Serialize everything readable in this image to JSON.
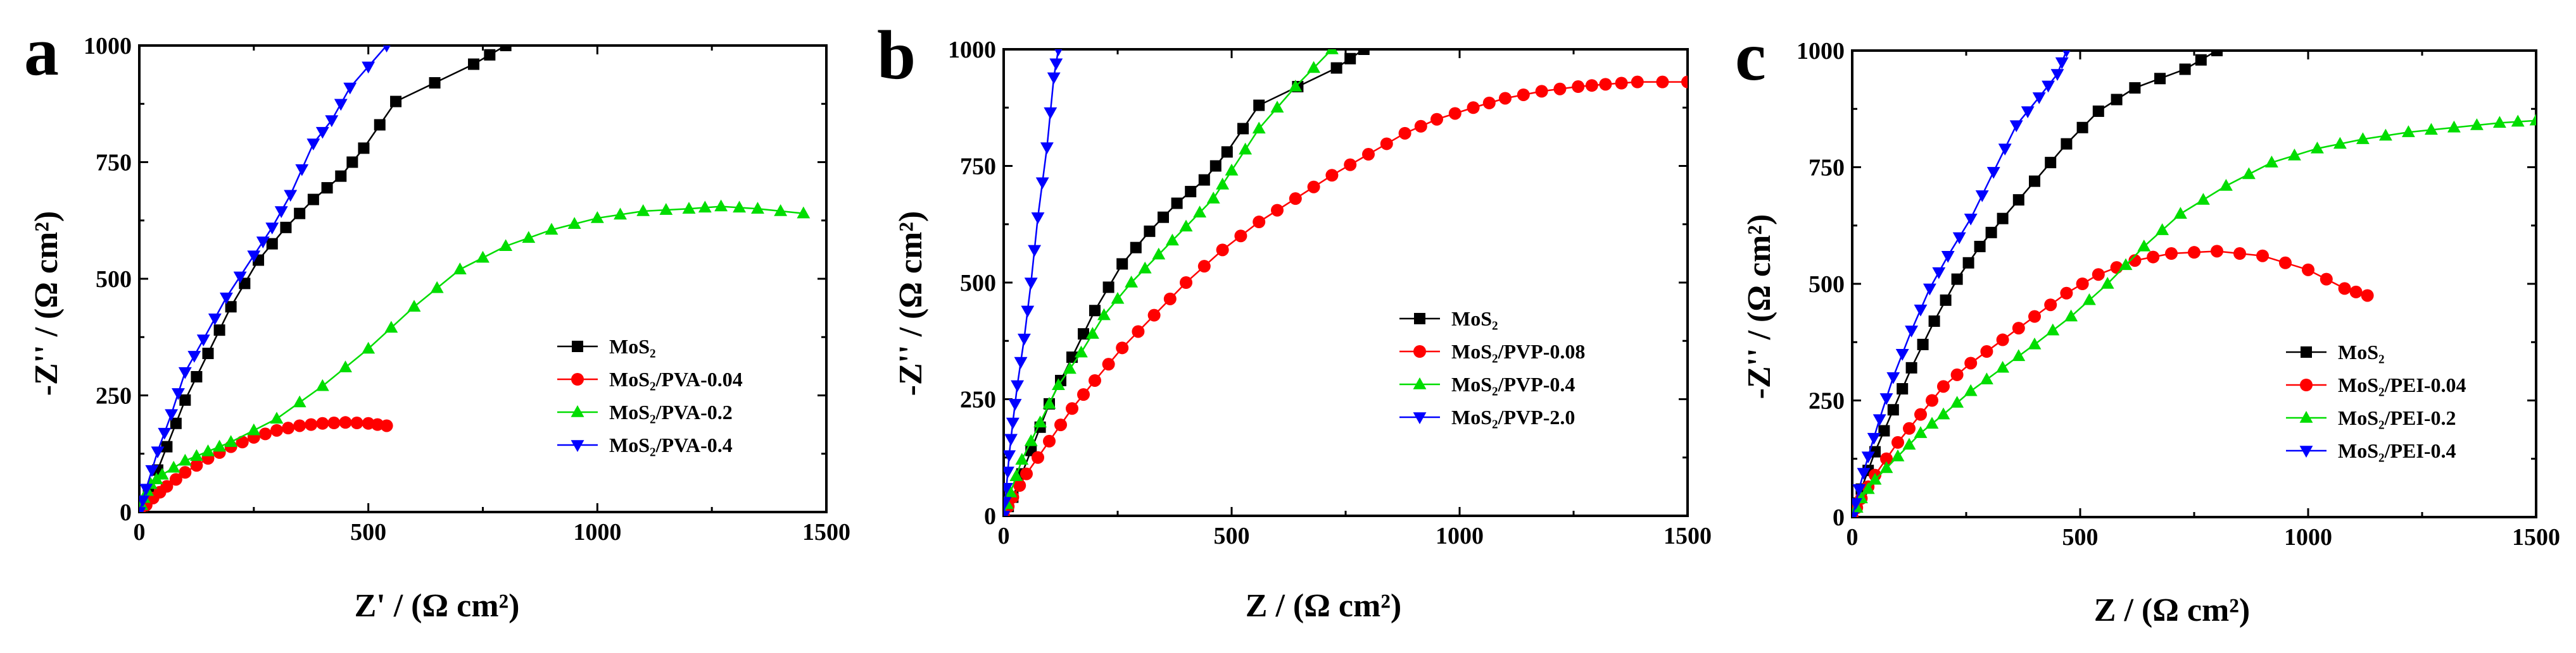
{
  "chart_data": [
    {
      "panel_letter": "a",
      "type": "scatter",
      "xlabel": "Z' / (Ω  cm²)",
      "ylabel": "-Z'' / (Ω  cm²)",
      "xlim": [
        0,
        1500
      ],
      "ylim": [
        0,
        1000
      ],
      "xticks": [
        "0",
        "500",
        "1000",
        "1500"
      ],
      "yticks": [
        "0",
        "250",
        "500",
        "750",
        "1000"
      ],
      "legend_position": "lower-right",
      "series": [
        {
          "name": "MoS₂",
          "color": "#000000",
          "marker": "square",
          "x": [
            0,
            20,
            60,
            100,
            150,
            200,
            260,
            320,
            380,
            440,
            490,
            560,
            730,
            800
          ],
          "y": [
            0,
            40,
            140,
            240,
            340,
            440,
            540,
            610,
            670,
            720,
            780,
            880,
            960,
            1000
          ]
        },
        {
          "name": "MoS₂/PVA-0.04",
          "color": "#ff0000",
          "marker": "circle",
          "x": [
            0,
            30,
            60,
            100,
            150,
            200,
            250,
            300,
            350,
            400,
            450,
            500,
            540
          ],
          "y": [
            0,
            30,
            55,
            85,
            115,
            140,
            160,
            175,
            185,
            190,
            192,
            190,
            185
          ],
          "markers_at_points": true
        },
        {
          "name": "MoS₂/PVA-0.2",
          "color": "#00dd00",
          "marker": "triangle-up",
          "x": [
            0,
            10,
            25,
            50,
            100,
            150,
            200,
            300,
            400,
            500,
            600,
            700,
            800,
            900,
            1000,
            1100,
            1200,
            1270,
            1350,
            1450
          ],
          "y": [
            0,
            30,
            60,
            80,
            110,
            130,
            150,
            200,
            270,
            350,
            440,
            520,
            570,
            605,
            630,
            645,
            650,
            655,
            650,
            640
          ]
        },
        {
          "name": "MoS₂/PVA-0.4",
          "color": "#0000ff",
          "marker": "triangle-down",
          "x": [
            0,
            15,
            40,
            70,
            100,
            140,
            190,
            250,
            290,
            330,
            380,
            420,
            460,
            540
          ],
          "y": [
            0,
            50,
            130,
            210,
            300,
            370,
            460,
            550,
            610,
            680,
            790,
            840,
            910,
            1000
          ]
        }
      ]
    },
    {
      "panel_letter": "b",
      "type": "scatter",
      "xlabel": "Z / (Ω  cm²)",
      "ylabel": "-Z'' / (Ω  cm²)",
      "xlim": [
        0,
        1500
      ],
      "ylim": [
        0,
        1000
      ],
      "xticks": [
        "0",
        "500",
        "1000",
        "1500"
      ],
      "yticks": [
        "0",
        "250",
        "500",
        "750",
        "1000"
      ],
      "legend_position": "center-right",
      "series": [
        {
          "name": "MoS₂",
          "color": "#000000",
          "marker": "square",
          "x": [
            0,
            20,
            60,
            100,
            150,
            200,
            260,
            320,
            380,
            440,
            490,
            560,
            730,
            790
          ],
          "y": [
            0,
            40,
            140,
            240,
            340,
            440,
            540,
            610,
            670,
            720,
            780,
            880,
            960,
            1000
          ]
        },
        {
          "name": "MoS₂/PVP-0.08",
          "color": "#ff0000",
          "marker": "circle",
          "x": [
            0,
            20,
            50,
            100,
            150,
            200,
            260,
            330,
            400,
            480,
            560,
            640,
            720,
            800,
            880,
            950,
            1030,
            1100,
            1180,
            1260,
            1320,
            1390,
            1500
          ],
          "y": [
            0,
            40,
            90,
            160,
            230,
            290,
            360,
            430,
            500,
            570,
            630,
            680,
            730,
            775,
            820,
            850,
            875,
            895,
            910,
            920,
            925,
            930,
            930
          ]
        },
        {
          "name": "MoS₂/PVP-0.4",
          "color": "#00dd00",
          "marker": "triangle-up",
          "x": [
            0,
            15,
            40,
            80,
            120,
            170,
            220,
            280,
            340,
            400,
            460,
            500,
            560,
            640,
            720
          ],
          "y": [
            0,
            50,
            120,
            200,
            280,
            350,
            430,
            500,
            560,
            620,
            680,
            740,
            830,
            920,
            1000
          ]
        },
        {
          "name": "MoS₂/PVP-2.0",
          "color": "#0000ff",
          "marker": "triangle-down",
          "x": [
            0,
            6,
            12,
            20,
            30,
            45,
            60,
            75,
            95,
            110,
            120
          ],
          "y": [
            0,
            60,
            130,
            200,
            280,
            380,
            500,
            640,
            790,
            940,
            1000
          ]
        }
      ]
    },
    {
      "panel_letter": "c",
      "type": "scatter",
      "xlabel": "Z / (Ω  cm²)",
      "ylabel": "-Z'' / (Ω  cm²)",
      "xlim": [
        0,
        1500
      ],
      "ylim": [
        0,
        1000
      ],
      "xticks": [
        "0",
        "500",
        "1000",
        "1500"
      ],
      "yticks": [
        "0",
        "250",
        "500",
        "750",
        "1000"
      ],
      "legend_position": "lower-right",
      "series": [
        {
          "name": "MoS₂",
          "color": "#000000",
          "marker": "square",
          "x": [
            0,
            20,
            50,
            90,
            130,
            180,
            230,
            280,
            330,
            400,
            470,
            540,
            620,
            730,
            800
          ],
          "y": [
            0,
            60,
            140,
            230,
            320,
            420,
            510,
            580,
            640,
            720,
            800,
            870,
            920,
            960,
            1000
          ]
        },
        {
          "name": "MoS₂/PEI-0.04",
          "color": "#ff0000",
          "marker": "circle",
          "x": [
            0,
            20,
            50,
            100,
            150,
            200,
            260,
            330,
            400,
            470,
            540,
            620,
            700,
            800,
            900,
            1000,
            1080,
            1130
          ],
          "y": [
            0,
            40,
            90,
            160,
            220,
            280,
            330,
            380,
            430,
            480,
            520,
            550,
            565,
            570,
            560,
            530,
            490,
            475
          ]
        },
        {
          "name": "MoS₂/PEI-0.2",
          "color": "#00dd00",
          "marker": "triangle-up",
          "x": [
            0,
            20,
            50,
            100,
            150,
            200,
            260,
            330,
            400,
            480,
            560,
            640,
            720,
            820,
            920,
            1020,
            1120,
            1220,
            1320,
            1420,
            1500
          ],
          "y": [
            0,
            40,
            80,
            130,
            180,
            220,
            270,
            320,
            370,
            430,
            500,
            580,
            650,
            710,
            760,
            790,
            810,
            825,
            835,
            845,
            850
          ]
        },
        {
          "name": "MoS₂/PEI-0.4",
          "color": "#0000ff",
          "marker": "triangle-down",
          "x": [
            0,
            15,
            35,
            60,
            90,
            130,
            170,
            210,
            260,
            310,
            360,
            410,
            450,
            470
          ],
          "y": [
            0,
            60,
            130,
            210,
            300,
            400,
            490,
            560,
            640,
            740,
            840,
            900,
            950,
            1000
          ]
        }
      ]
    }
  ]
}
